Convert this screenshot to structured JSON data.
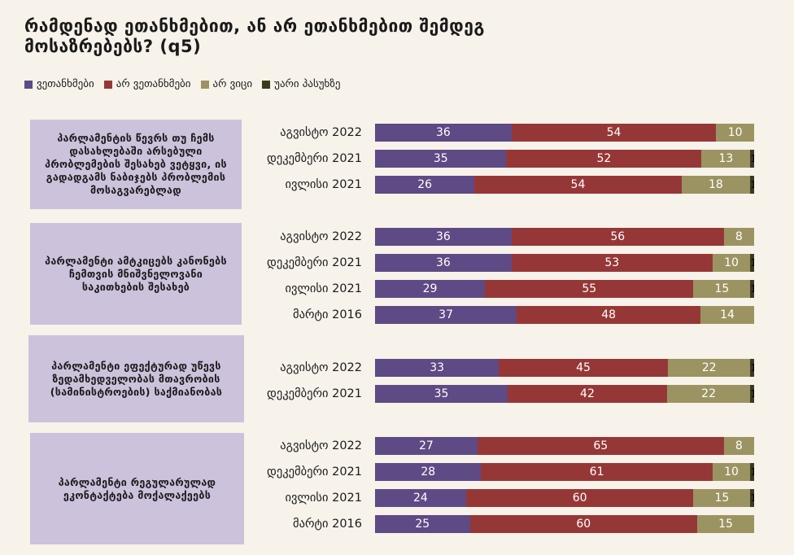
{
  "title_lines": [
    "რამდენად ეთანხმებით, ან არ ეთანხმებით შემდეგ",
    "მოსაზრებებს? (q5)"
  ],
  "chart_data": {
    "type": "bar",
    "orientation": "horizontal-stacked",
    "xlim": [
      0,
      100
    ],
    "legend_placement": "top-left",
    "series": [
      {
        "name": "ვეთანხმები",
        "color": "#5e4a84"
      },
      {
        "name": "არ ვეთანხმები",
        "color": "#963737"
      },
      {
        "name": "არ ვიცი",
        "color": "#9b9462"
      },
      {
        "name": "უარი პასუხზე",
        "color": "#3a3a1e"
      }
    ],
    "groups": [
      {
        "label": "პარლამენტის წევრს თუ ჩემს დასახლებაში არსებული პრობლემების შესახებ ვეტყვი, ის გადადგამს ნაბიჯებს პრობლემის მოსაგვარებლად",
        "rows": [
          {
            "period": "აგვისტო 2022",
            "values": [
              36,
              54,
              10,
              0
            ]
          },
          {
            "period": "დეკემბერი 2021",
            "values": [
              35,
              52,
              13,
              1
            ]
          },
          {
            "period": "ივლისი 2021",
            "values": [
              26,
              54,
              18,
              1
            ]
          }
        ]
      },
      {
        "label": "პარლამენტი ამტკიცებს კანონებს ჩემთვის მნიშვნელოვანი საკითხების შესახებ",
        "rows": [
          {
            "period": "აგვისტო 2022",
            "values": [
              36,
              56,
              8,
              0
            ]
          },
          {
            "period": "დეკემბერი 2021",
            "values": [
              36,
              53,
              10,
              1
            ]
          },
          {
            "period": "ივლისი 2021",
            "values": [
              29,
              55,
              15,
              1
            ]
          },
          {
            "period": "მარტი 2016",
            "values": [
              37,
              48,
              14,
              0
            ]
          }
        ]
      },
      {
        "label": "პარლამენტი ეფექტურად უწევს ზედამხედველობას მთავრობის (სამინისტროების) საქმიანობას",
        "rows": [
          {
            "period": "აგვისტო 2022",
            "values": [
              33,
              45,
              22,
              1
            ]
          },
          {
            "period": "დეკემბერი 2021",
            "values": [
              35,
              42,
              22,
              1
            ]
          }
        ]
      },
      {
        "label": "პარლამენტი რეგულარულად ეკონტაქტება მოქალაქეებს",
        "rows": [
          {
            "period": "აგვისტო 2022",
            "values": [
              27,
              65,
              8,
              0
            ]
          },
          {
            "period": "დეკემბერი 2021",
            "values": [
              28,
              61,
              10,
              1
            ]
          },
          {
            "period": "ივლისი 2021",
            "values": [
              24,
              60,
              15,
              1
            ]
          },
          {
            "period": "მარტი 2016",
            "values": [
              25,
              60,
              15,
              0
            ]
          }
        ]
      }
    ]
  }
}
